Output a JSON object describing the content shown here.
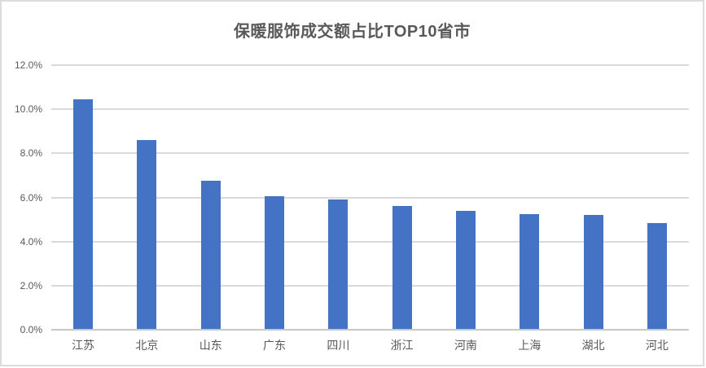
{
  "chart_data": {
    "type": "bar",
    "title": "保暖服饰成交额占比TOP10省市",
    "categories": [
      "江苏",
      "北京",
      "山东",
      "广东",
      "四川",
      "浙江",
      "河南",
      "上海",
      "湖北",
      "河北"
    ],
    "values": [
      10.45,
      8.6,
      6.75,
      6.05,
      5.9,
      5.6,
      5.4,
      5.25,
      5.2,
      4.85
    ],
    "unit": "%",
    "xlabel": "",
    "ylabel": "",
    "ylim": [
      0,
      12
    ],
    "ytick_step": 2,
    "ytick_labels": [
      "0.0%",
      "2.0%",
      "4.0%",
      "6.0%",
      "8.0%",
      "10.0%",
      "12.0%"
    ],
    "grid": true,
    "legend": false,
    "colors": {
      "bar": "#4472c4",
      "gridline": "#dadada",
      "axisline": "#c8c8c8",
      "title": "#595959",
      "tick_label": "#595959"
    }
  }
}
